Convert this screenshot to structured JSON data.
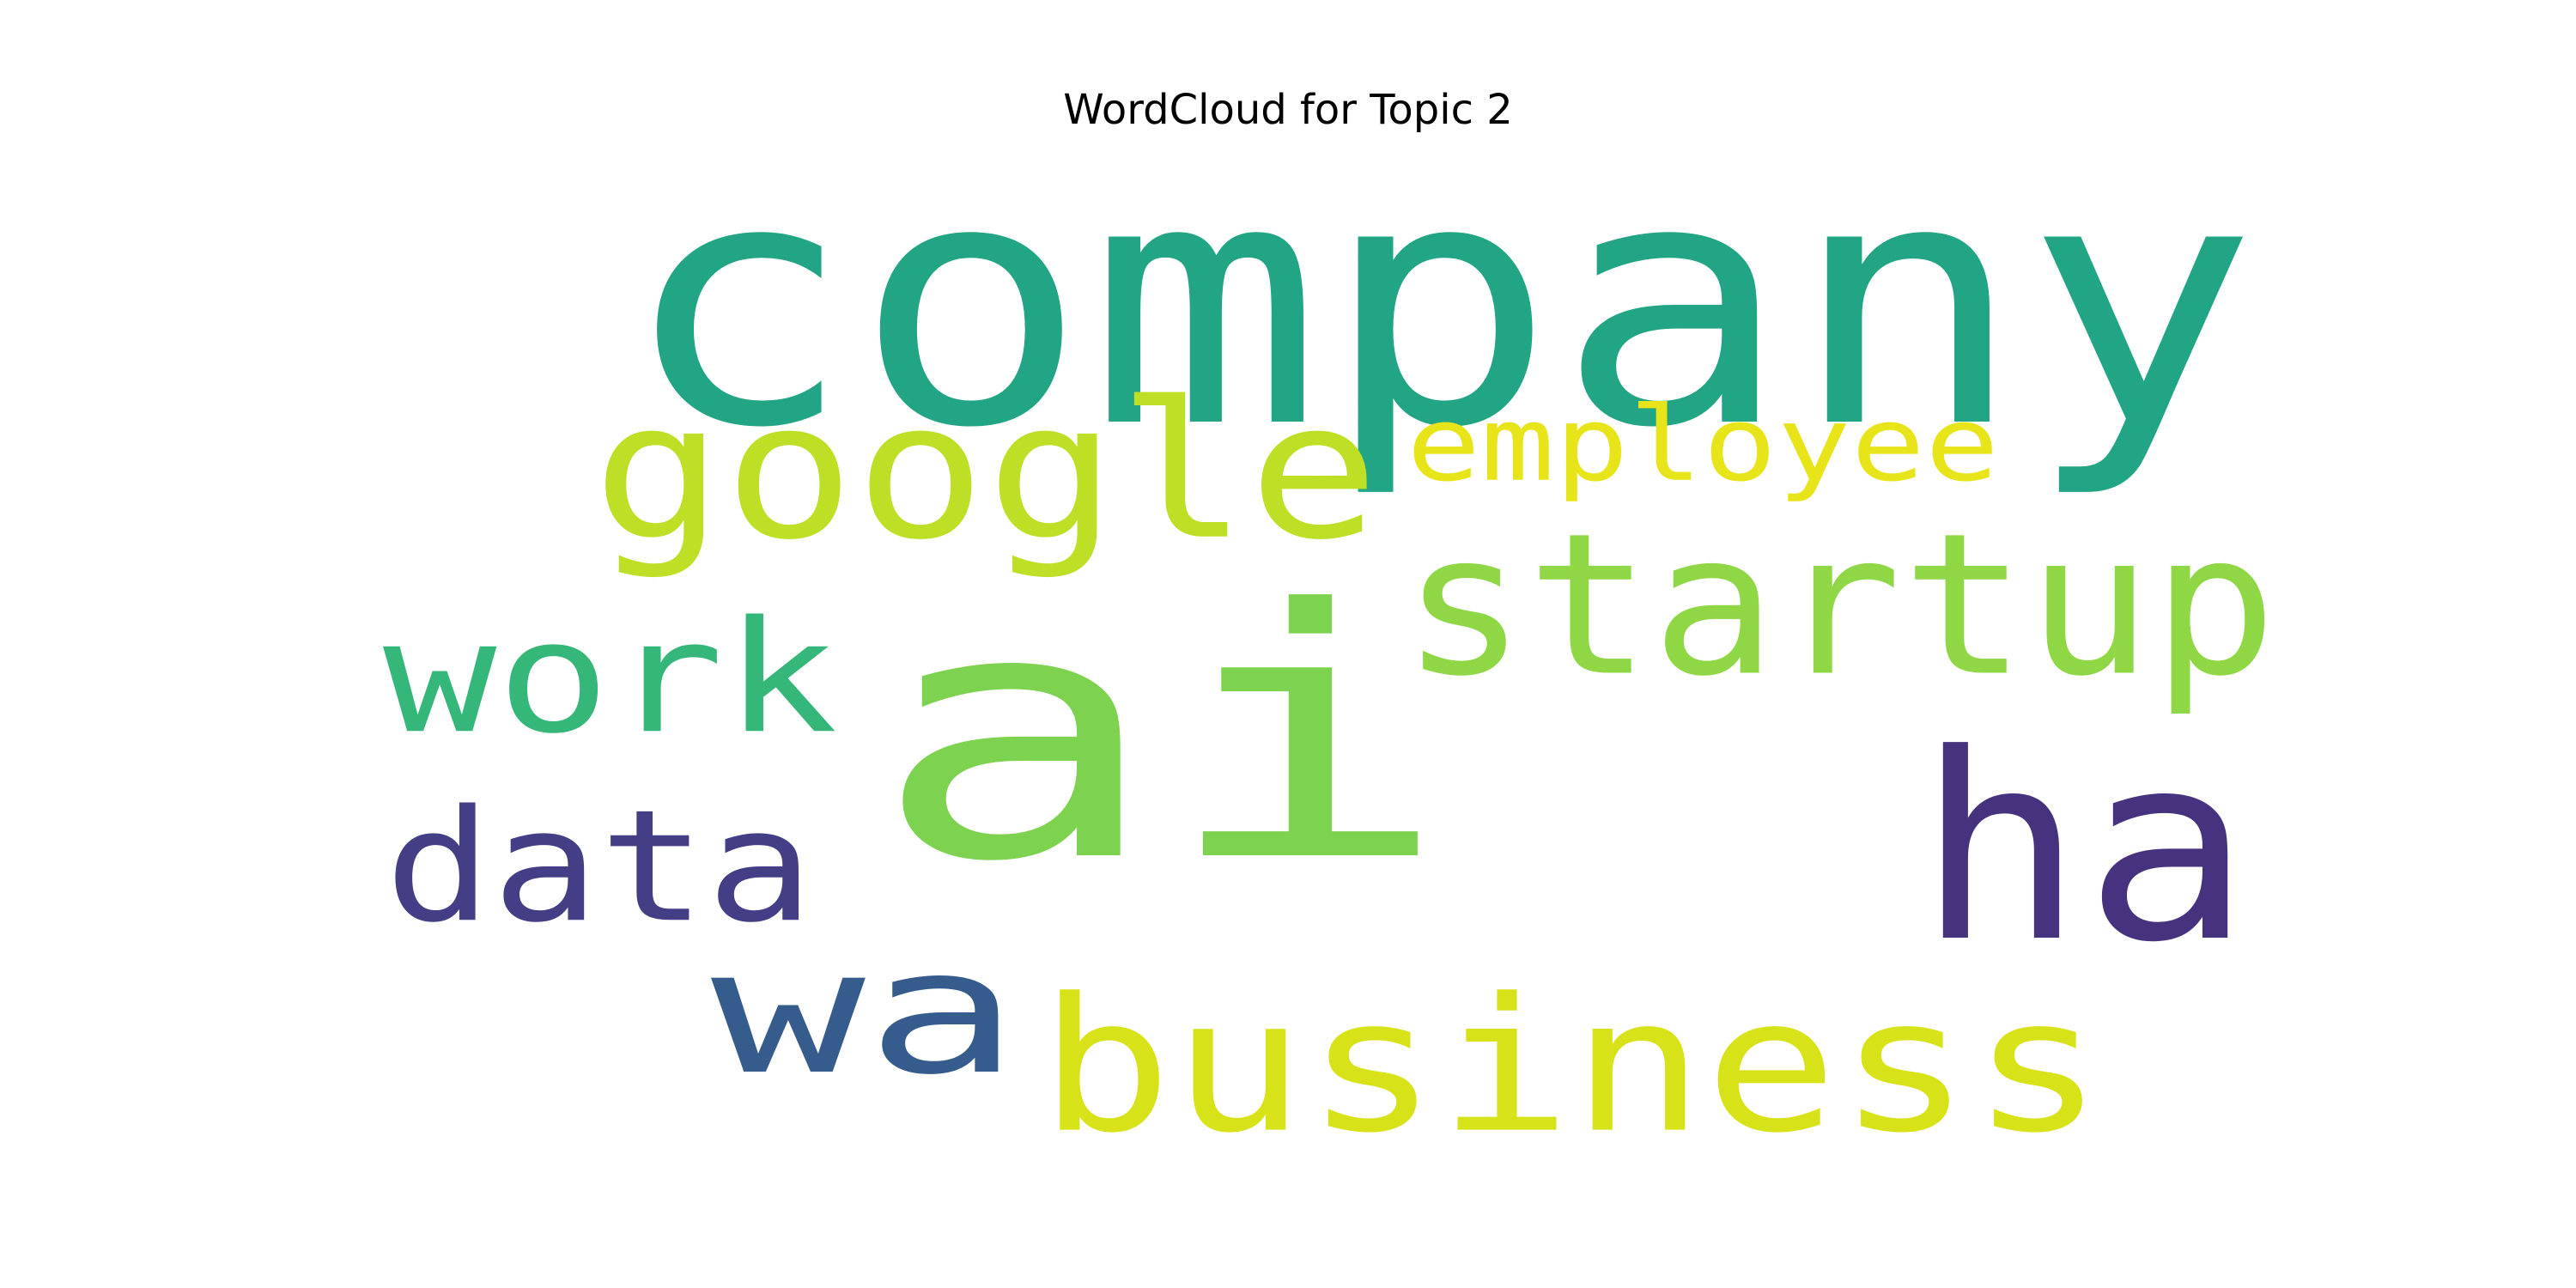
{
  "title": "WordCloud for Topic 2",
  "words": [
    {
      "text": "company",
      "color": "#21A585"
    },
    {
      "text": "ai",
      "color": "#7DD250"
    },
    {
      "text": "google",
      "color": "#BDDF26"
    },
    {
      "text": "employee",
      "color": "#E7E419"
    },
    {
      "text": "startup",
      "color": "#8FD744"
    },
    {
      "text": "work",
      "color": "#35B779"
    },
    {
      "text": "ha",
      "color": "#46327E"
    },
    {
      "text": "data",
      "color": "#433E85"
    },
    {
      "text": "wa",
      "color": "#365C8D"
    },
    {
      "text": "business",
      "color": "#D8E219"
    }
  ]
}
